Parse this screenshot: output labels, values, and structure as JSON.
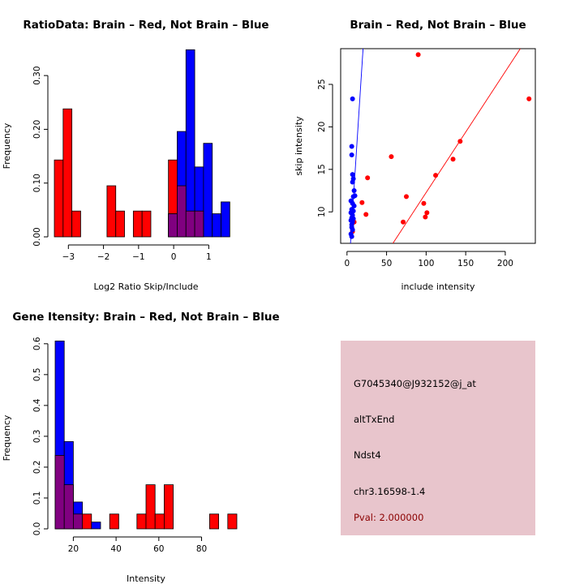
{
  "colors": {
    "red": "#ff0000",
    "blue": "#0000ff",
    "overlap": "#800080",
    "info_bg": "#e8c5cc",
    "pval": "#8b0000"
  },
  "chart_data": [
    {
      "type": "histogram",
      "title": "RatioData: Brain – Red, Not Brain – Blue",
      "xlabel": "Log2 Ratio Skip/Include",
      "ylabel": "Frequency",
      "xlim": [
        -3.4,
        1.8
      ],
      "ylim": [
        0,
        0.35
      ],
      "xticks": [
        -3,
        -2,
        -1,
        0,
        1
      ],
      "xtick_labels": [
        "−3",
        "−2",
        "−1",
        "0",
        "1"
      ],
      "yticks": [
        0.0,
        0.1,
        0.2,
        0.3
      ],
      "ytick_labels": [
        "0.00",
        "0.10",
        "0.20",
        "0.30"
      ],
      "series": [
        {
          "name": "Brain",
          "color": "red",
          "bins": [
            {
              "x0": -3.4,
              "x1": -3.15,
              "y": 0.143
            },
            {
              "x0": -3.15,
              "x1": -2.9,
              "y": 0.238
            },
            {
              "x0": -2.9,
              "x1": -2.65,
              "y": 0.048
            },
            {
              "x0": -1.9,
              "x1": -1.65,
              "y": 0.095
            },
            {
              "x0": -1.65,
              "x1": -1.4,
              "y": 0.048
            },
            {
              "x0": -1.15,
              "x1": -0.9,
              "y": 0.048
            },
            {
              "x0": -0.9,
              "x1": -0.65,
              "y": 0.048
            },
            {
              "x0": -0.15,
              "x1": 0.1,
              "y": 0.143
            },
            {
              "x0": 0.1,
              "x1": 0.35,
              "y": 0.095
            },
            {
              "x0": 0.35,
              "x1": 0.6,
              "y": 0.048
            },
            {
              "x0": 0.6,
              "x1": 0.85,
              "y": 0.048
            }
          ]
        },
        {
          "name": "Not Brain",
          "color": "blue",
          "bins": [
            {
              "x0": -0.15,
              "x1": 0.1,
              "y": 0.043
            },
            {
              "x0": 0.1,
              "x1": 0.35,
              "y": 0.196
            },
            {
              "x0": 0.35,
              "x1": 0.6,
              "y": 0.348
            },
            {
              "x0": 0.6,
              "x1": 0.85,
              "y": 0.13
            },
            {
              "x0": 0.85,
              "x1": 1.1,
              "y": 0.174
            },
            {
              "x0": 1.1,
              "x1": 1.35,
              "y": 0.043
            },
            {
              "x0": 1.35,
              "x1": 1.6,
              "y": 0.065
            }
          ]
        }
      ]
    },
    {
      "type": "scatter",
      "title": "Brain – Red, Not Brain – Blue",
      "xlabel": "include intensity",
      "ylabel": "skip intensity",
      "xlim": [
        -8,
        238
      ],
      "ylim": [
        6.3,
        29.2
      ],
      "xticks": [
        0,
        50,
        100,
        150,
        200
      ],
      "yticks": [
        10,
        15,
        20,
        25
      ],
      "series": [
        {
          "name": "Brain",
          "color": "red",
          "points": [
            [
              90,
              28.5
            ],
            [
              230,
              23.3
            ],
            [
              143,
              18.3
            ],
            [
              56,
              16.5
            ],
            [
              134,
              16.2
            ],
            [
              112,
              14.3
            ],
            [
              26,
              14.0
            ],
            [
              75,
              11.8
            ],
            [
              19,
              11.1
            ],
            [
              97,
              11.0
            ],
            [
              101,
              9.9
            ],
            [
              24,
              9.7
            ],
            [
              99,
              9.4
            ],
            [
              71,
              8.8
            ],
            [
              9,
              8.8
            ],
            [
              7,
              7.7
            ]
          ]
        },
        {
          "name": "Not Brain",
          "color": "blue",
          "points": [
            [
              7,
              23.3
            ],
            [
              6,
              17.7
            ],
            [
              6,
              16.7
            ],
            [
              7,
              14.4
            ],
            [
              8,
              13.9
            ],
            [
              7,
              13.5
            ],
            [
              9,
              12.5
            ],
            [
              8,
              11.8
            ],
            [
              10,
              11.9
            ],
            [
              5,
              11.3
            ],
            [
              7,
              11.0
            ],
            [
              9,
              10.7
            ],
            [
              6,
              10.3
            ],
            [
              8,
              10.1
            ],
            [
              5,
              9.9
            ],
            [
              7,
              9.6
            ],
            [
              6,
              9.3
            ],
            [
              8,
              9.2
            ],
            [
              5,
              9.0
            ],
            [
              7,
              8.8
            ],
            [
              6,
              8.5
            ],
            [
              6,
              8.2
            ],
            [
              7,
              7.9
            ],
            [
              5,
              7.4
            ],
            [
              6,
              7.1
            ]
          ]
        }
      ],
      "lines": [
        {
          "color": "blue",
          "points": [
            [
              4.4,
              6.3
            ],
            [
              20.3,
              29.2
            ]
          ]
        },
        {
          "color": "red",
          "points": [
            [
              58,
              6.3
            ],
            [
              219,
              29.2
            ]
          ]
        }
      ]
    },
    {
      "type": "histogram",
      "title": "Gene Itensity: Brain – Red, Not Brain – Blue",
      "xlabel": "Intensity",
      "ylabel": "Frequency",
      "xlim": [
        11.5,
        96.5
      ],
      "ylim": [
        0,
        0.61
      ],
      "xticks": [
        20,
        40,
        60,
        80
      ],
      "yticks": [
        0.0,
        0.1,
        0.2,
        0.3,
        0.4,
        0.5,
        0.6
      ],
      "ytick_labels": [
        "0.0",
        "0.1",
        "0.2",
        "0.3",
        "0.4",
        "0.5",
        "0.6"
      ],
      "series": [
        {
          "name": "Brain",
          "color": "red",
          "bins": [
            {
              "x0": 11.5,
              "x1": 15.75,
              "y": 0.238
            },
            {
              "x0": 15.75,
              "x1": 20.0,
              "y": 0.143
            },
            {
              "x0": 20.0,
              "x1": 24.25,
              "y": 0.048
            },
            {
              "x0": 24.25,
              "x1": 28.5,
              "y": 0.048
            },
            {
              "x0": 37.0,
              "x1": 41.25,
              "y": 0.048
            },
            {
              "x0": 49.75,
              "x1": 54.0,
              "y": 0.048
            },
            {
              "x0": 54.0,
              "x1": 58.25,
              "y": 0.143
            },
            {
              "x0": 58.25,
              "x1": 62.5,
              "y": 0.048
            },
            {
              "x0": 62.5,
              "x1": 66.75,
              "y": 0.143
            },
            {
              "x0": 83.75,
              "x1": 88.0,
              "y": 0.048
            },
            {
              "x0": 92.25,
              "x1": 96.5,
              "y": 0.048
            }
          ]
        },
        {
          "name": "Not Brain",
          "color": "blue",
          "bins": [
            {
              "x0": 11.5,
              "x1": 15.75,
              "y": 0.609
            },
            {
              "x0": 15.75,
              "x1": 20.0,
              "y": 0.283
            },
            {
              "x0": 20.0,
              "x1": 24.25,
              "y": 0.087
            },
            {
              "x0": 28.5,
              "x1": 32.75,
              "y": 0.022
            }
          ]
        }
      ]
    }
  ],
  "info_panel": {
    "probe": "G7045340@J932152@j_at",
    "event": "altTxEnd",
    "gene": "Ndst4",
    "location": "chr3.16598-1.4",
    "pval": "Pval: 2.000000"
  }
}
